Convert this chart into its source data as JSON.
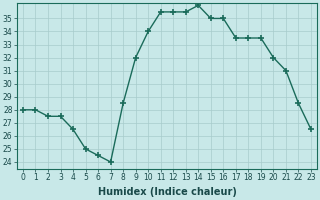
{
  "x": [
    0,
    1,
    2,
    3,
    4,
    5,
    6,
    7,
    8,
    9,
    10,
    11,
    12,
    13,
    14,
    15,
    16,
    17,
    18,
    19,
    20,
    21,
    22,
    23
  ],
  "y": [
    28,
    28,
    27.5,
    27.5,
    26.5,
    25,
    24.5,
    24,
    28.5,
    32,
    34,
    35.5,
    35.5,
    35.5,
    36,
    35,
    35,
    33.5,
    33.5,
    33.5,
    32,
    31,
    28.5,
    26.5
  ],
  "line_color": "#1a6b5a",
  "marker": "+",
  "marker_size": 4,
  "xlabel": "Humidex (Indice chaleur)",
  "xlim": [
    -0.5,
    23.5
  ],
  "ylim": [
    23.5,
    36.2
  ],
  "yticks": [
    24,
    25,
    26,
    27,
    28,
    29,
    30,
    31,
    32,
    33,
    34,
    35
  ],
  "xticks": [
    0,
    1,
    2,
    3,
    4,
    5,
    6,
    7,
    8,
    9,
    10,
    11,
    12,
    13,
    14,
    15,
    16,
    17,
    18,
    19,
    20,
    21,
    22,
    23
  ],
  "bg_color": "#c8e8e8",
  "grid_color": "#a8cccc",
  "line_width": 1.0,
  "tick_label_size": 5.5,
  "xlabel_size": 7,
  "font_color": "#1a4a4a"
}
